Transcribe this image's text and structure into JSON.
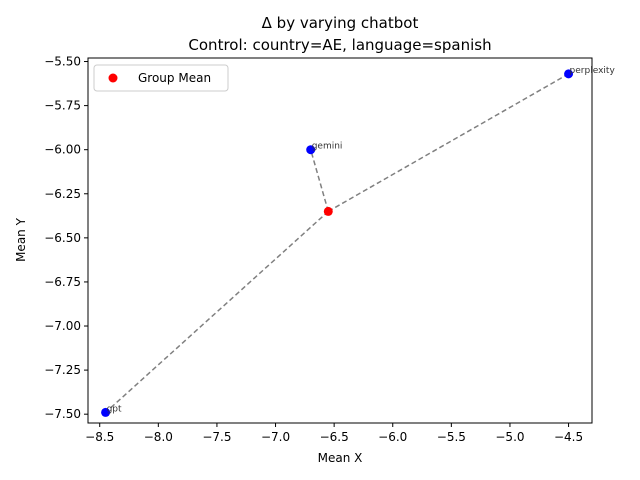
{
  "chart_data": {
    "type": "scatter",
    "title": "Δ by varying chatbot",
    "subtitle": "Control: country=AE, language=spanish",
    "xlabel": "Mean X",
    "ylabel": "Mean Y",
    "xlim": [
      -8.6,
      -4.3
    ],
    "ylim": [
      -7.55,
      -5.48
    ],
    "xticks": [
      -8.5,
      -8.0,
      -7.5,
      -7.0,
      -6.5,
      -6.0,
      -5.5,
      -5.0,
      -4.5
    ],
    "xtick_labels": [
      "−8.5",
      "−8.0",
      "−7.5",
      "−7.0",
      "−6.5",
      "−6.0",
      "−5.5",
      "−5.0",
      "−4.5"
    ],
    "yticks": [
      -7.5,
      -7.25,
      -7.0,
      -6.75,
      -6.5,
      -6.25,
      -6.0,
      -5.75,
      -5.5
    ],
    "ytick_labels": [
      "−7.50",
      "−7.25",
      "−7.00",
      "−6.75",
      "−6.50",
      "−6.25",
      "−6.00",
      "−5.75",
      "−5.50"
    ],
    "grid": false,
    "legend": {
      "position": "top-left",
      "entries": [
        {
          "label": "Group Mean",
          "color": "#ff0000"
        }
      ]
    },
    "group_mean": {
      "x": -6.55,
      "y": -6.35,
      "color": "#ff0000"
    },
    "points": [
      {
        "label": "gemini",
        "x": -6.7,
        "y": -6.0,
        "color": "#0000ff"
      },
      {
        "label": "perplexity",
        "x": -4.5,
        "y": -5.57,
        "color": "#0000ff"
      },
      {
        "label": "gpt",
        "x": -8.45,
        "y": -7.49,
        "color": "#0000ff"
      }
    ],
    "connector_color": "#808080"
  }
}
